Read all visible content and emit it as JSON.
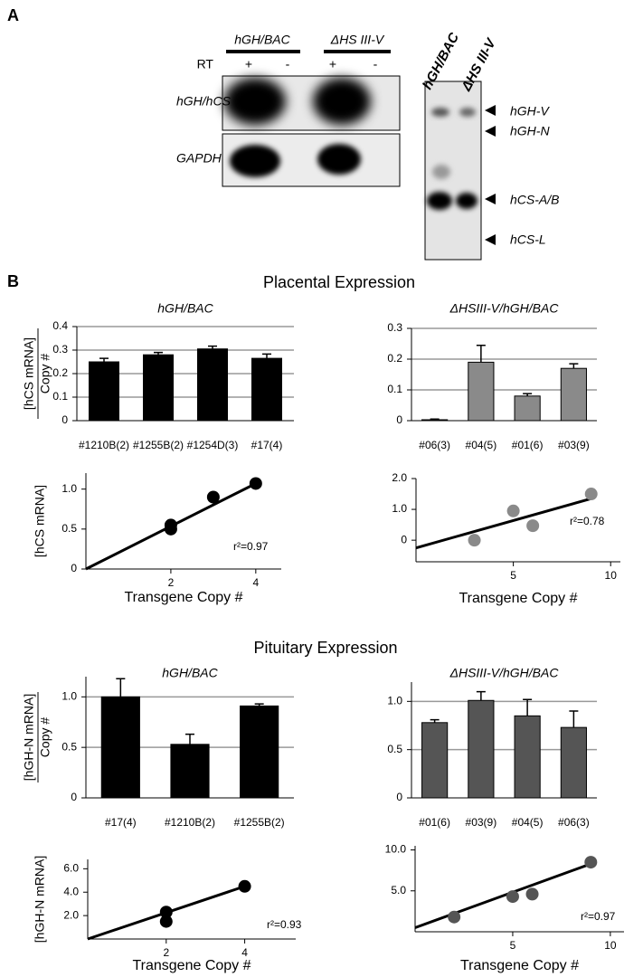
{
  "panel_a": {
    "label": "A",
    "lanes": [
      "hGH/BAC",
      "ΔHS III-V"
    ],
    "rt_label": "RT",
    "rt": [
      "+",
      "-",
      "+",
      "-"
    ],
    "rows": [
      "hGH/hCS",
      "GAPDH"
    ],
    "gel2_lanes": [
      "hGH/BAC",
      "ΔHS III-V"
    ],
    "bands": [
      "hGH-V",
      "hGH-N",
      "hCS-A/B",
      "hCS-L"
    ]
  },
  "panel_b": {
    "label": "B",
    "sections": [
      "Placental Expression",
      "Pituitary Expression"
    ]
  },
  "chart_data": [
    {
      "type": "bar",
      "title": "hGH/BAC",
      "ylabel": "[hCS mRNA]",
      "ylabel_denominator": "Copy #",
      "categories": [
        "#1210B(2)",
        "#1255B(2)",
        "#1254D(3)",
        "#17(4)"
      ],
      "values": [
        0.25,
        0.28,
        0.305,
        0.265
      ],
      "errors": [
        0.015,
        0.01,
        0.012,
        0.018
      ],
      "color": "#000000",
      "ylim": [
        0,
        0.4
      ],
      "yticks": [
        0,
        0.1,
        0.2,
        0.3,
        0.4
      ],
      "grid": true
    },
    {
      "type": "bar",
      "title": "ΔHSIII-V/hGH/BAC",
      "categories": [
        "#06(3)",
        "#04(5)",
        "#01(6)",
        "#03(9)"
      ],
      "values": [
        0.003,
        0.19,
        0.08,
        0.17
      ],
      "errors": [
        0.002,
        0.055,
        0.008,
        0.015
      ],
      "color": "#8a8a8a",
      "ylim": [
        0,
        0.3
      ],
      "yticks": [
        0,
        0.1,
        0.2,
        0.3
      ],
      "grid": true
    },
    {
      "type": "scatter",
      "ylabel": "[hCS mRNA]",
      "xlabel": "Transgene Copy #",
      "annotation": "r²=0.97",
      "x": [
        2,
        2,
        3,
        4
      ],
      "values": [
        0.55,
        0.5,
        0.9,
        1.07
      ],
      "trend": {
        "x": [
          0,
          4
        ],
        "y": [
          0,
          1.07
        ]
      },
      "color": "#000000",
      "xlim": [
        0,
        4.6
      ],
      "xticks": [
        2,
        4
      ],
      "ylim": [
        0,
        1.2
      ],
      "yticks": [
        0,
        0.5,
        {
          "value": 1,
          "label": "1.0"
        }
      ]
    },
    {
      "type": "scatter",
      "xlabel": "Transgene Copy #",
      "annotation": "r²=0.78",
      "x": [
        3,
        5,
        6,
        9
      ],
      "values": [
        0,
        0.95,
        0.47,
        1.5
      ],
      "trend": {
        "x": [
          0,
          9
        ],
        "y": [
          -0.25,
          1.35
        ]
      },
      "color": "#8a8a8a",
      "xlim": [
        0,
        10.5
      ],
      "xticks": [
        5,
        10
      ],
      "ylim": [
        -0.7,
        2.0
      ],
      "yticks": [
        0,
        {
          "value": 1,
          "label": "1.0"
        },
        {
          "value": 2,
          "label": "2.0"
        }
      ]
    },
    {
      "type": "bar",
      "title": "hGH/BAC",
      "ylabel": "[hGH-N mRNA]",
      "ylabel_denominator": "Copy #",
      "categories": [
        "#17(4)",
        "#1210B(2)",
        "#1255B(2)"
      ],
      "values": [
        1.0,
        0.53,
        0.91
      ],
      "errors": [
        0.18,
        0.1,
        0.02
      ],
      "color": "#000000",
      "ylim": [
        0,
        1.2
      ],
      "yticks": [
        0,
        0.5,
        {
          "value": 1,
          "label": "1.0"
        }
      ],
      "grid": true
    },
    {
      "type": "bar",
      "title": "ΔHSIII-V/hGH/BAC",
      "categories": [
        "#01(6)",
        "#03(9)",
        "#04(5)",
        "#06(3)"
      ],
      "values": [
        0.78,
        1.01,
        0.85,
        0.73
      ],
      "errors": [
        0.03,
        0.09,
        0.17,
        0.17
      ],
      "color": "#555555",
      "ylim": [
        0,
        1.2
      ],
      "yticks": [
        0,
        0.5,
        {
          "value": 1,
          "label": "1.0"
        }
      ],
      "grid": true
    },
    {
      "type": "scatter",
      "ylabel": "[hGH-N mRNA]",
      "xlabel": "Transgene Copy #",
      "annotation": "r²=0.93",
      "x": [
        2,
        2,
        4
      ],
      "values": [
        2.3,
        1.5,
        4.5
      ],
      "trend": {
        "x": [
          0,
          4
        ],
        "y": [
          0,
          4.5
        ]
      },
      "color": "#000000",
      "xlim": [
        0,
        5.3
      ],
      "xticks": [
        2,
        4
      ],
      "ylim": [
        0,
        6.8
      ],
      "yticks": [
        {
          "value": 2,
          "label": "2.0"
        },
        {
          "value": 4,
          "label": "4.0"
        },
        {
          "value": 6,
          "label": "6.0"
        }
      ]
    },
    {
      "type": "scatter",
      "xlabel": "Transgene Copy #",
      "annotation": "r²=0.97",
      "x": [
        2,
        5,
        6,
        9
      ],
      "values": [
        1.8,
        4.3,
        4.6,
        8.5
      ],
      "trend": {
        "x": [
          0,
          9
        ],
        "y": [
          0.5,
          8.3
        ]
      },
      "color": "#555555",
      "xlim": [
        0,
        10.7
      ],
      "xticks": [
        5,
        10
      ],
      "ylim": [
        0,
        10.5
      ],
      "yticks": [
        {
          "value": 5,
          "label": "5.0"
        },
        {
          "value": 10,
          "label": "10.0"
        }
      ]
    }
  ]
}
